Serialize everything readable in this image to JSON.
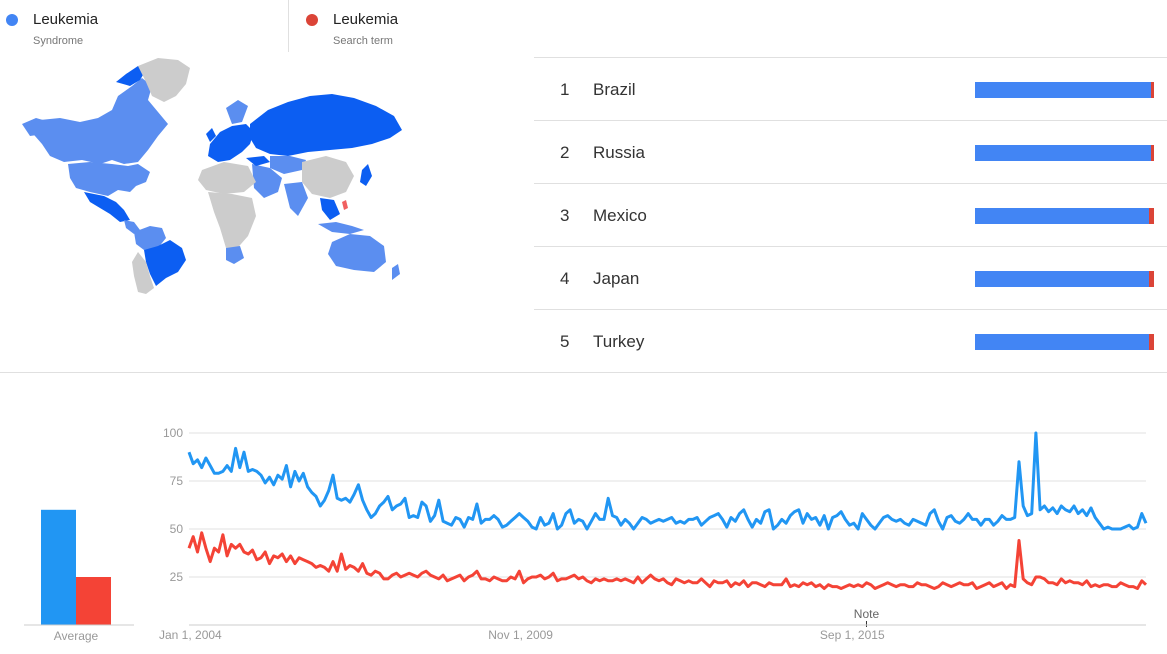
{
  "legend": [
    {
      "name": "Leukemia",
      "subtitle": "Syndrome",
      "color": "#4285f4"
    },
    {
      "name": "Leukemia",
      "subtitle": "Search term",
      "color": "#db4437"
    }
  ],
  "ranking": [
    {
      "rank": "1",
      "region": "Brazil",
      "share_a": 0.985,
      "share_b": 0.015
    },
    {
      "rank": "2",
      "region": "Russia",
      "share_a": 0.985,
      "share_b": 0.015
    },
    {
      "rank": "3",
      "region": "Mexico",
      "share_a": 0.97,
      "share_b": 0.03
    },
    {
      "rank": "4",
      "region": "Japan",
      "share_a": 0.97,
      "share_b": 0.03
    },
    {
      "rank": "5",
      "region": "Turkey",
      "share_a": 0.97,
      "share_b": 0.03
    }
  ],
  "colors": {
    "series_a": "#2196f3",
    "series_b": "#f44336",
    "grid": "#e0e0e0",
    "axis_text": "#999999",
    "map_land": "#cccccc",
    "map_light": "#5b8ef0",
    "map_strong": "#0c5ef2",
    "map_red": "#f06060"
  },
  "chart_data": [
    {
      "type": "bar",
      "categories": [
        "Average"
      ],
      "series": [
        {
          "values": [
            60
          ]
        },
        {
          "values": [
            25
          ]
        }
      ],
      "ylim": [
        0,
        100
      ]
    },
    {
      "type": "line",
      "x_labels": [
        "Jan 1, 2004",
        "Nov 1, 2009",
        "Sep 1, 2015"
      ],
      "x_start": "2004-01",
      "x_end": "2020-11",
      "yticks": [
        25,
        50,
        75,
        100
      ],
      "ylim": [
        0,
        100
      ],
      "grid": true,
      "annotation": {
        "label": "Note",
        "x": "2015-12"
      },
      "series": [
        {
          "color": "#2196f3",
          "values": [
            90,
            84,
            86,
            82,
            87,
            83,
            79,
            79,
            80,
            83,
            80,
            92,
            82,
            90,
            80,
            81,
            80,
            78,
            74,
            77,
            73,
            78,
            76,
            83,
            72,
            80,
            75,
            79,
            72,
            69,
            67,
            62,
            65,
            70,
            78,
            66,
            65,
            66,
            64,
            68,
            73,
            65,
            60,
            56,
            58,
            62,
            64,
            67,
            60,
            62,
            63,
            66,
            56,
            57,
            56,
            64,
            62,
            54,
            57,
            65,
            54,
            53,
            52,
            56,
            55,
            51,
            56,
            55,
            63,
            53,
            55,
            55,
            57,
            55,
            51,
            52,
            54,
            56,
            58,
            56,
            54,
            51,
            50,
            56,
            52,
            53,
            58,
            50,
            52,
            58,
            60,
            53,
            55,
            54,
            50,
            54,
            58,
            55,
            55,
            66,
            57,
            56,
            52,
            55,
            53,
            50,
            53,
            56,
            55,
            53,
            54,
            55,
            54,
            55,
            56,
            53,
            54,
            53,
            55,
            55,
            56,
            52,
            54,
            56,
            57,
            58,
            55,
            51,
            56,
            54,
            58,
            60,
            55,
            51,
            55,
            53,
            59,
            60,
            50,
            52,
            55,
            53,
            57,
            59,
            60,
            53,
            58,
            55,
            56,
            52,
            57,
            50,
            56,
            57,
            59,
            55,
            52,
            53,
            50,
            58,
            55,
            52,
            50,
            53,
            56,
            57,
            55,
            54,
            55,
            53,
            52,
            55,
            54,
            53,
            52,
            58,
            60,
            54,
            50,
            56,
            57,
            54,
            53,
            55,
            58,
            55,
            55,
            52,
            55,
            55,
            52,
            54,
            57,
            55,
            55,
            56,
            85,
            62,
            57,
            58,
            100,
            60,
            62,
            59,
            61,
            58,
            62,
            60,
            59,
            62,
            58,
            60,
            57,
            61,
            56,
            53,
            50,
            51,
            50,
            50,
            50,
            51,
            52,
            50,
            51,
            58,
            53
          ]
        },
        {
          "color": "#f44336",
          "values": [
            40,
            46,
            38,
            48,
            40,
            33,
            40,
            38,
            47,
            36,
            42,
            40,
            42,
            38,
            37,
            39,
            34,
            35,
            38,
            32,
            36,
            35,
            37,
            33,
            36,
            32,
            35,
            34,
            33,
            32,
            30,
            31,
            30,
            28,
            33,
            28,
            37,
            29,
            31,
            30,
            28,
            32,
            27,
            26,
            28,
            27,
            24,
            24,
            26,
            27,
            25,
            26,
            27,
            26,
            25,
            27,
            28,
            26,
            25,
            24,
            26,
            23,
            24,
            25,
            26,
            23,
            25,
            26,
            28,
            24,
            24,
            23,
            25,
            24,
            23,
            23,
            25,
            24,
            28,
            22,
            24,
            25,
            25,
            26,
            24,
            25,
            27,
            23,
            24,
            24,
            25,
            26,
            24,
            25,
            23,
            22,
            24,
            23,
            24,
            23,
            23,
            24,
            23,
            24,
            23,
            22,
            25,
            22,
            24,
            26,
            24,
            23,
            24,
            22,
            21,
            24,
            23,
            22,
            23,
            22,
            22,
            24,
            22,
            20,
            23,
            22,
            22,
            23,
            20,
            22,
            21,
            23,
            20,
            22,
            22,
            21,
            20,
            22,
            21,
            21,
            21,
            24,
            20,
            21,
            20,
            22,
            21,
            22,
            20,
            21,
            19,
            21,
            20,
            20,
            19,
            20,
            21,
            20,
            21,
            20,
            22,
            21,
            19,
            20,
            21,
            22,
            21,
            20,
            21,
            21,
            20,
            20,
            22,
            21,
            21,
            20,
            19,
            20,
            22,
            21,
            20,
            21,
            22,
            21,
            21,
            22,
            19,
            20,
            21,
            22,
            20,
            21,
            22,
            19,
            21,
            20,
            44,
            24,
            22,
            21,
            25,
            25,
            24,
            22,
            22,
            21,
            24,
            22,
            23,
            22,
            22,
            21,
            23,
            20,
            21,
            20,
            21,
            21,
            20,
            20,
            22,
            21,
            20,
            20,
            19,
            23,
            21
          ]
        }
      ]
    }
  ]
}
